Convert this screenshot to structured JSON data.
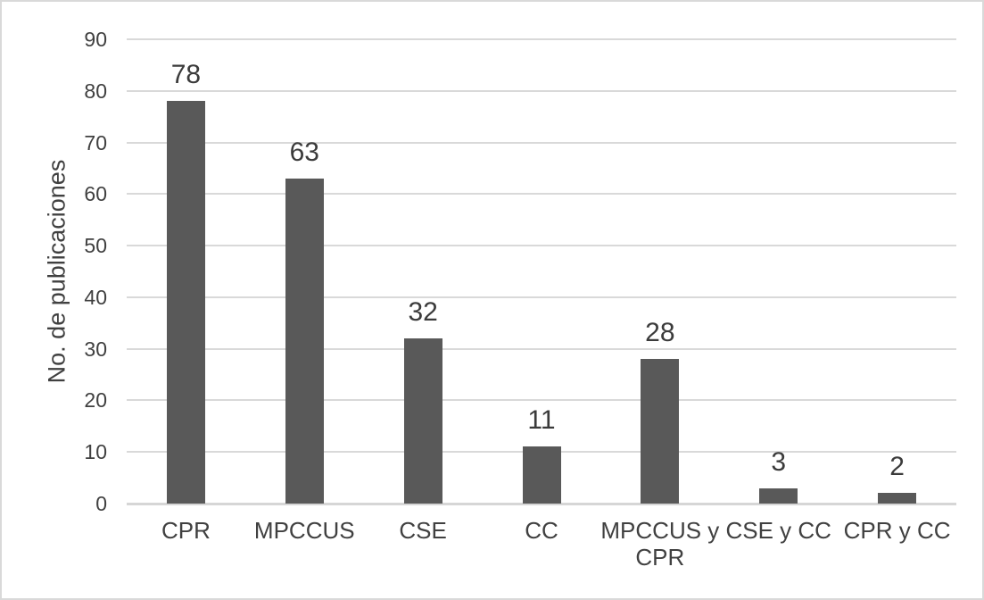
{
  "chart_data": {
    "type": "bar",
    "title": "",
    "categories": [
      "CPR",
      "MPCCUS",
      "CSE",
      "CC",
      "MPCCUS y CPR",
      "CSE y CC",
      "CPR y CC"
    ],
    "values": [
      78,
      63,
      32,
      11,
      28,
      3,
      2
    ],
    "data_labels": [
      "78",
      "63",
      "32",
      "11",
      "28",
      "3",
      "2"
    ],
    "xlabel": "",
    "ylabel": "No. de publicaciones",
    "ylim": [
      0,
      90
    ],
    "yticks": [
      0,
      10,
      20,
      30,
      40,
      50,
      60,
      70,
      80,
      90
    ],
    "grid": true,
    "legend": false,
    "data_labels_visible": true,
    "colors": {
      "bar": "#595959",
      "gridline": "#d9d9d9",
      "axis_line": "#d6d6d6",
      "text": "#404040",
      "data_label_text": "#3b3b3b",
      "background": "#ffffff",
      "border": "#d9d9d9"
    }
  }
}
